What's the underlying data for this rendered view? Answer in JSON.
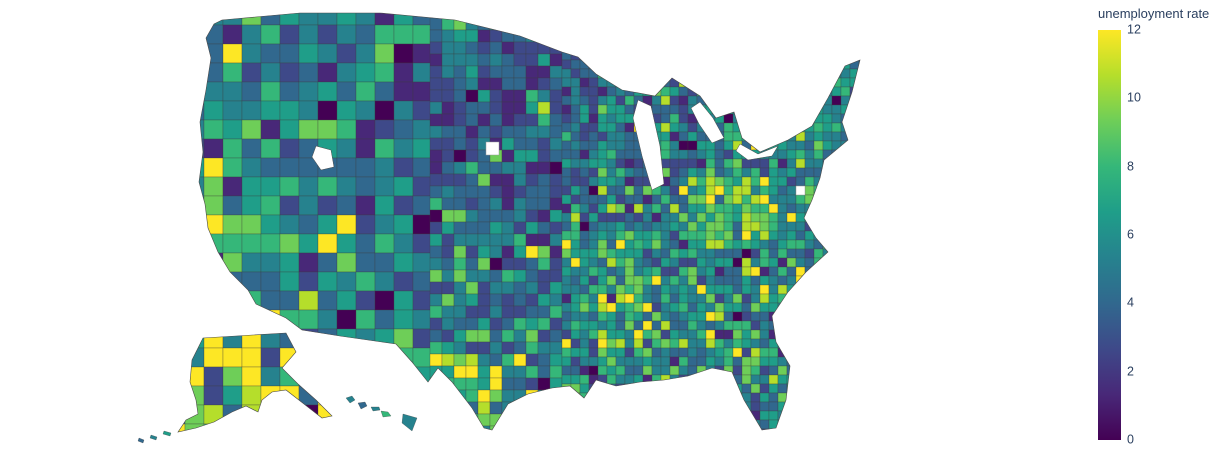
{
  "figure": {
    "type": "choropleth-map",
    "background_color": "#ffffff"
  },
  "chart_data": {
    "type": "heatmap",
    "subtype": "usa-county-choropleth",
    "title": "",
    "legend_title": "unemployment rate",
    "value_range": [
      0,
      12
    ],
    "colorbar_ticks": [
      12,
      10,
      8,
      6,
      4,
      2,
      0
    ],
    "colorscale_name": "Viridis",
    "colorscale": [
      "#440154",
      "#482878",
      "#3e4989",
      "#31688e",
      "#26828e",
      "#1f9e89",
      "#35b779",
      "#6ece58",
      "#b5de2b",
      "#fde725"
    ],
    "geography": "United States counties including Alaska and Hawaii",
    "legend_position": "right",
    "missing_data_color": "#ffffff"
  },
  "colorbar": {
    "title": "unemployment rate",
    "ticks": [
      "12",
      "10",
      "8",
      "6",
      "4",
      "2",
      "0"
    ],
    "title_color": "#2a3f5f",
    "tick_color": "#2a3f5f"
  },
  "map": {
    "county_border_color": "#3d3d3d",
    "outline_color": "#4a4a4a",
    "lake_color": "#ffffff",
    "missing_fill": "#ffffff",
    "missing_stroke": "#9a9a9a"
  }
}
